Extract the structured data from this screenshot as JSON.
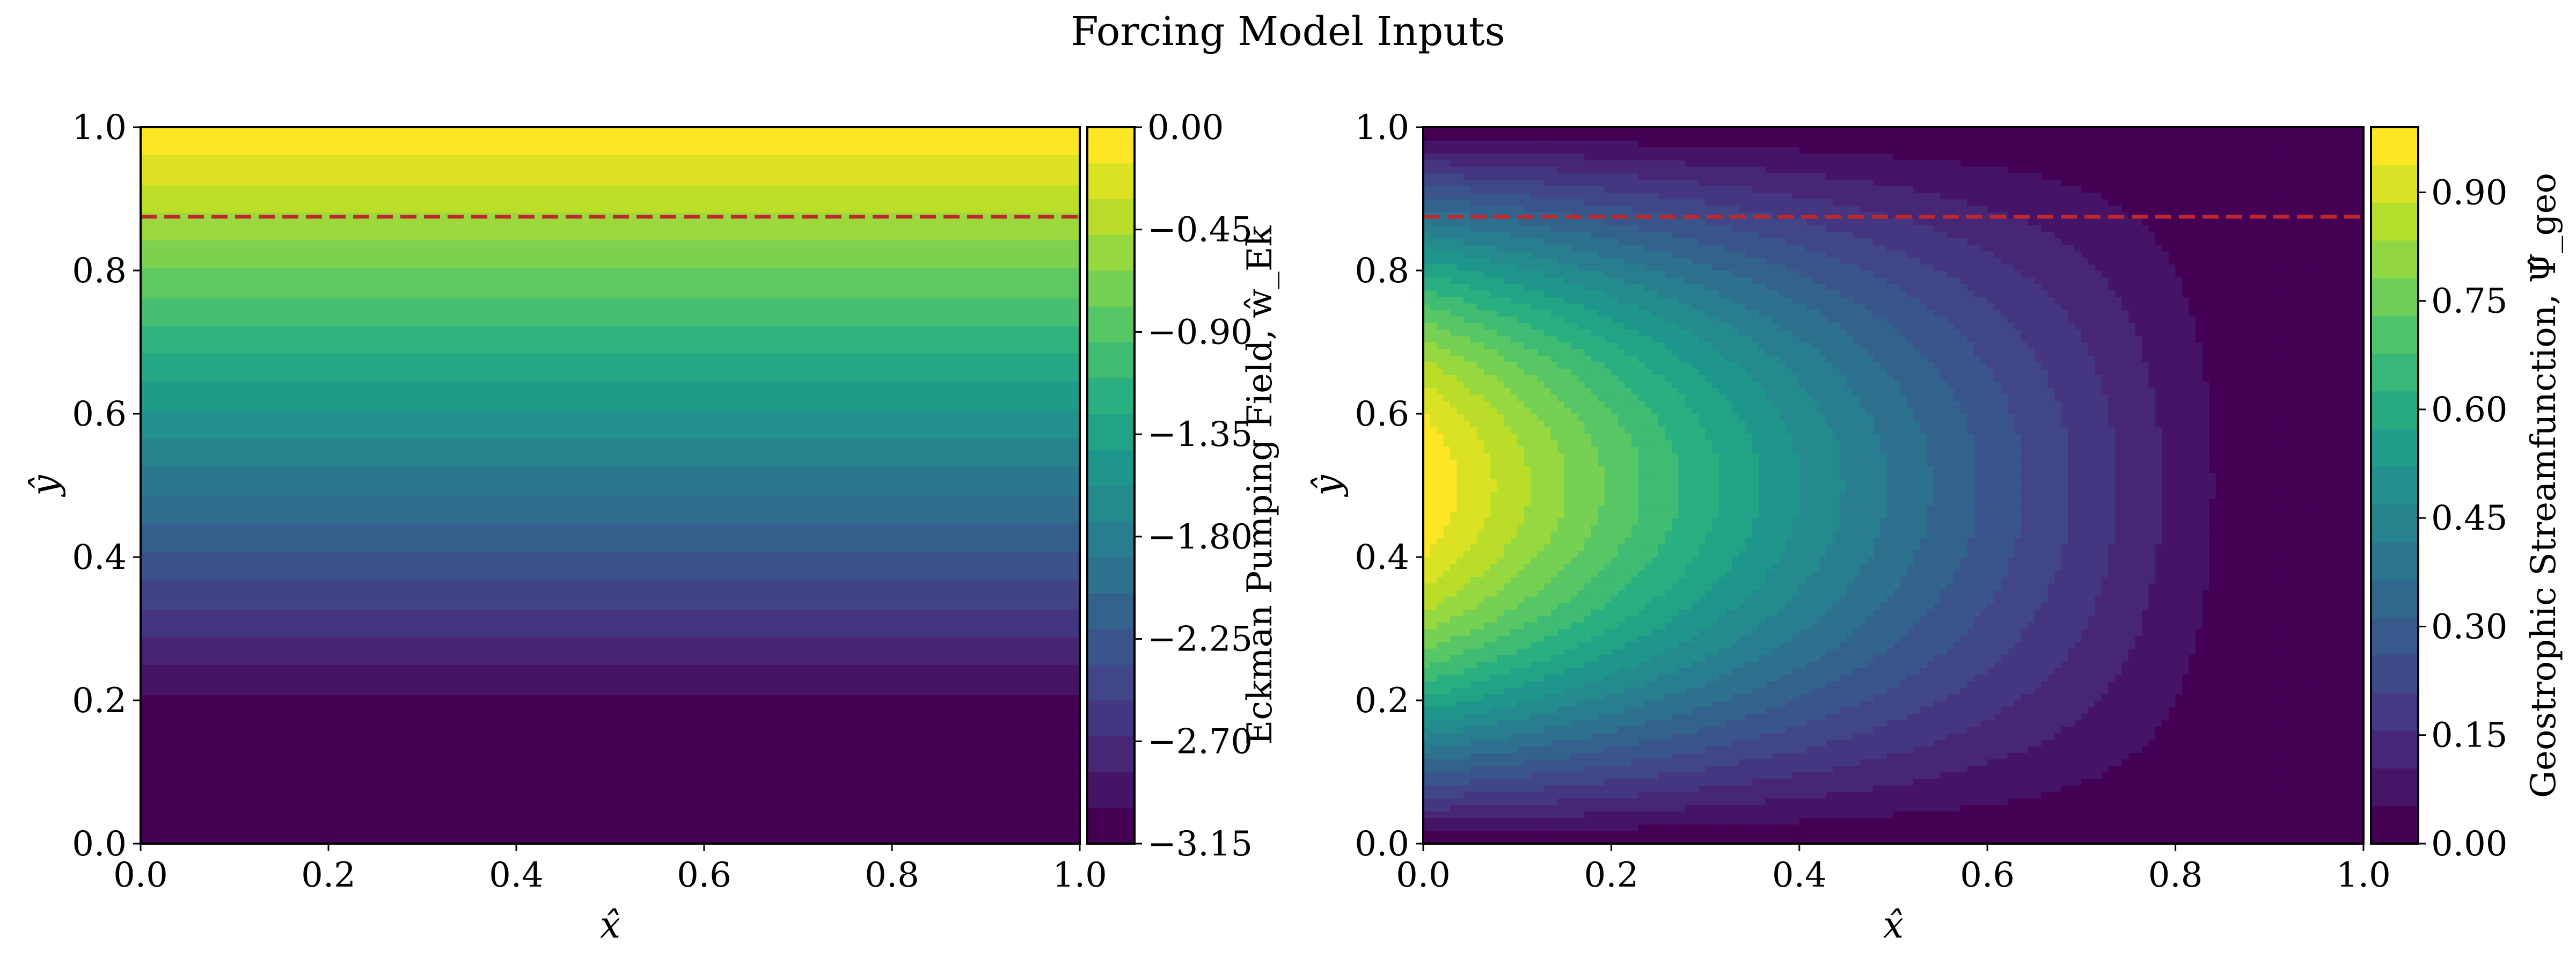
{
  "figure": {
    "title": "Forcing Model Inputs"
  },
  "palette": {
    "viridis": [
      "#440154",
      "#482173",
      "#433e85",
      "#38588c",
      "#2d708e",
      "#25858e",
      "#1e9b8a",
      "#2ab07f",
      "#52c569",
      "#86d549",
      "#c2df23",
      "#fde725"
    ],
    "dashed_line": "#c0282e",
    "frame": "#000000"
  },
  "chart_data": [
    {
      "type": "heatmap",
      "subtype": "filled-contour",
      "field": "eckman_pumping",
      "xlabel": "x̂",
      "ylabel": "ŷ",
      "xlim": [
        0.0,
        1.0
      ],
      "ylim": [
        0.0,
        1.0
      ],
      "xticks": [
        "0.0",
        "0.2",
        "0.4",
        "0.6",
        "0.8",
        "1.0"
      ],
      "yticks": [
        "0.0",
        "0.2",
        "0.4",
        "0.6",
        "0.8",
        "1.0"
      ],
      "variation": "varies with y only; increases linearly from about -3.15 near y = 0.17 to 0.00 at y = 1.0; constant minimum below y = 0.17",
      "plateau_y": 0.17,
      "min": -3.15,
      "max": 0.0,
      "levels": 21,
      "colorbar": {
        "label": "Eckman Pumping Field, ŵ_Ek",
        "range": [
          -3.15,
          0.0
        ],
        "ticks": [
          "0.00",
          "−0.45",
          "−0.90",
          "−1.35",
          "−1.80",
          "−2.25",
          "−2.70",
          "−3.15"
        ],
        "tick_values": [
          0.0,
          -0.45,
          -0.9,
          -1.35,
          -1.8,
          -2.25,
          -2.7,
          -3.15
        ]
      },
      "reference_line": {
        "style": "dashed",
        "y": 0.875,
        "color": "#c0282e"
      }
    },
    {
      "type": "heatmap",
      "subtype": "filled-contour",
      "field": "geostrophic_streamfunction",
      "xlabel": "x̂",
      "ylabel": "ŷ",
      "xlim": [
        0.0,
        1.0
      ],
      "ylim": [
        0.0,
        1.0
      ],
      "xticks": [
        "0.0",
        "0.2",
        "0.4",
        "0.6",
        "0.8",
        "1.0"
      ],
      "yticks": [
        "0.0",
        "0.2",
        "0.4",
        "0.6",
        "0.8",
        "1.0"
      ],
      "variation": "maximum of about 0.99 at x = 0, y = 0.5; decays toward 0 with increasing x and toward y = 0 and y = 1; near zero beyond x = 0.95",
      "peak": {
        "x": 0.0,
        "y": 0.5,
        "value": 0.99
      },
      "min": 0.0,
      "max": 0.99,
      "levels": 20,
      "colorbar": {
        "label": "Geostrophic Streamfunction, Ψ̂_geo",
        "range": [
          0.0,
          0.99
        ],
        "ticks": [
          "0.00",
          "0.15",
          "0.30",
          "0.45",
          "0.60",
          "0.75",
          "0.90"
        ],
        "tick_values": [
          0.0,
          0.15,
          0.3,
          0.45,
          0.6,
          0.75,
          0.9
        ]
      },
      "reference_line": {
        "style": "dashed",
        "y": 0.875,
        "color": "#c0282e"
      }
    }
  ]
}
